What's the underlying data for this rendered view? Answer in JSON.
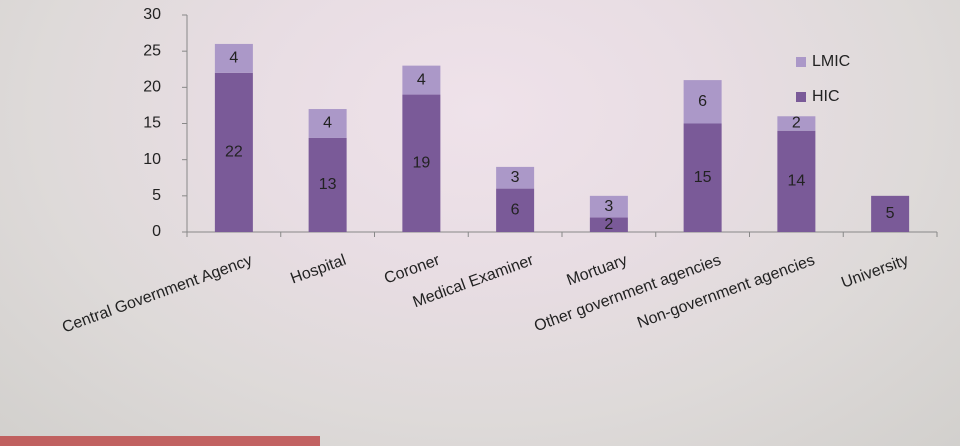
{
  "chart_data": {
    "type": "stacked-bar",
    "categories": [
      "Central Government Agency",
      "Hospital",
      "Coroner",
      "Medical Examiner",
      "Mortuary",
      "Other government agencies",
      "Non-government agencies",
      "University"
    ],
    "series": [
      {
        "name": "HIC",
        "color": "#7a5a98",
        "values": [
          22,
          13,
          19,
          6,
          2,
          15,
          14,
          5
        ]
      },
      {
        "name": "LMIC",
        "color": "#ab98c8",
        "values": [
          4,
          4,
          4,
          3,
          3,
          6,
          2,
          null
        ]
      }
    ],
    "ylim": [
      0,
      30
    ],
    "yticks": [
      0,
      5,
      10,
      15,
      20,
      25,
      30
    ],
    "legend": "right"
  }
}
